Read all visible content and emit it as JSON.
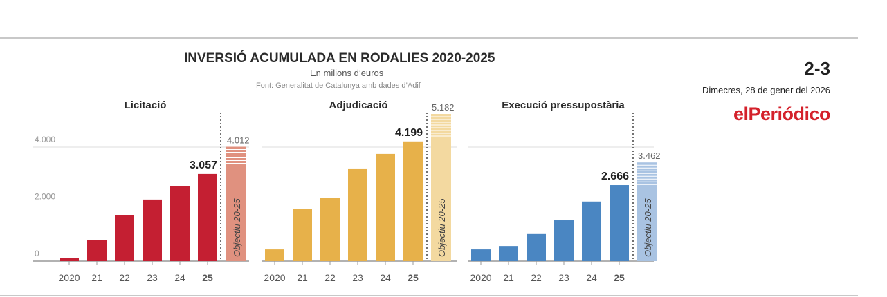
{
  "header": {
    "title": "INVERSIÓ ACUMULADA EN RODALIES 2020-2025",
    "subtitle": "En milions d’euros",
    "source": "Font: Generalitat de Catalunya amb dades d’Adif"
  },
  "masthead": {
    "page": "2-3",
    "date": "Dimecres, 28 de gener del 2026",
    "logo": "elPeriódico"
  },
  "chart_data": [
    {
      "type": "bar",
      "title": "Licitació",
      "categories": [
        "2020",
        "21",
        "22",
        "23",
        "24",
        "25"
      ],
      "values": [
        120,
        730,
        1600,
        2160,
        2640,
        3057
      ],
      "value_label": "3.057",
      "target": {
        "label": "Objectiu 20-25",
        "value": 4012,
        "value_label": "4.012"
      },
      "ylim": [
        0,
        4400
      ],
      "yticks": [
        {
          "v": 0,
          "label": "0"
        },
        {
          "v": 2000,
          "label": "2.000"
        },
        {
          "v": 4000,
          "label": "4.000"
        }
      ],
      "color": "#c41f32",
      "target_color": "#e0917f",
      "grid": true
    },
    {
      "type": "bar",
      "title": "Adjudicació",
      "categories": [
        "2020",
        "21",
        "22",
        "23",
        "24",
        "25"
      ],
      "values": [
        410,
        1820,
        2210,
        3250,
        3760,
        4199
      ],
      "value_label": "4.199",
      "target": {
        "label": "Objectiu 20-25",
        "value": 5182,
        "value_label": "5.182"
      },
      "ylim": [
        0,
        4400
      ],
      "color": "#e7b14a",
      "target_color": "#f3d9a0",
      "grid": true
    },
    {
      "type": "bar",
      "title": "Execució pressupostària",
      "categories": [
        "2020",
        "21",
        "22",
        "23",
        "24",
        "25"
      ],
      "values": [
        410,
        530,
        950,
        1430,
        2090,
        2666
      ],
      "value_label": "2.666",
      "target": {
        "label": "Objectiu 20-25",
        "value": 3462,
        "value_label": "3.462"
      },
      "ylim": [
        0,
        4400
      ],
      "color": "#4a86c2",
      "target_color": "#a9c3e2",
      "grid": true
    }
  ]
}
